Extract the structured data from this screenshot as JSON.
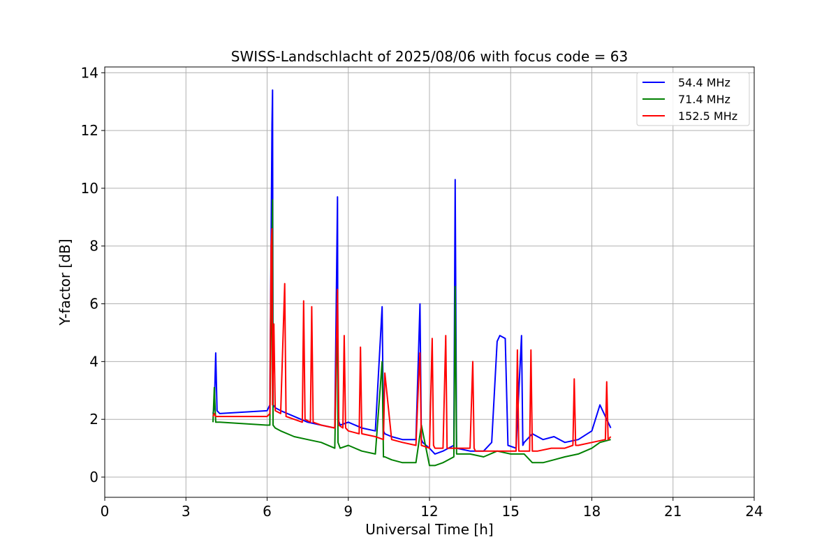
{
  "chart_data": {
    "type": "line",
    "title": "SWISS-Landschlacht of 2025/08/06 with focus code = 63",
    "xlabel": "Universal Time [h]",
    "ylabel": "Y-factor [dB]",
    "xlim": [
      0,
      24
    ],
    "ylim": [
      -0.7,
      14.2
    ],
    "xticks": [
      0,
      3,
      6,
      9,
      12,
      15,
      18,
      21,
      24
    ],
    "yticks": [
      0,
      2,
      4,
      6,
      8,
      10,
      12,
      14
    ],
    "grid": true,
    "legend_position": "top-right",
    "series": [
      {
        "name": "54.4 MHz",
        "color": "#0000ff",
        "x": [
          4.0,
          4.05,
          4.1,
          4.15,
          4.25,
          6.0,
          6.1,
          6.18,
          6.2,
          6.22,
          6.3,
          6.5,
          7.0,
          7.5,
          8.0,
          8.5,
          8.6,
          8.62,
          8.7,
          9.0,
          9.5,
          10.0,
          10.25,
          10.3,
          10.35,
          10.6,
          11.0,
          11.5,
          11.65,
          11.7,
          11.75,
          12.0,
          12.2,
          12.5,
          12.9,
          12.95,
          13.0,
          13.5,
          14.0,
          14.3,
          14.5,
          14.6,
          14.8,
          14.9,
          15.2,
          15.4,
          15.45,
          15.5,
          15.8,
          16.2,
          16.6,
          17.0,
          17.5,
          18.0,
          18.3,
          18.7
        ],
        "y": [
          2.2,
          2.4,
          4.3,
          2.3,
          2.2,
          2.3,
          2.5,
          12.2,
          13.4,
          2.5,
          2.4,
          2.3,
          2.1,
          1.9,
          1.8,
          1.7,
          9.7,
          2.0,
          1.8,
          1.9,
          1.7,
          1.6,
          5.9,
          1.6,
          1.5,
          1.4,
          1.3,
          1.3,
          6.0,
          1.3,
          1.2,
          1.0,
          0.8,
          0.9,
          1.1,
          10.3,
          1.0,
          0.9,
          0.9,
          1.2,
          4.7,
          4.9,
          4.8,
          1.1,
          1.0,
          4.9,
          1.1,
          1.2,
          1.5,
          1.3,
          1.4,
          1.2,
          1.3,
          1.6,
          2.5,
          1.7
        ]
      },
      {
        "name": "71.4 MHz",
        "color": "#008000",
        "x": [
          4.0,
          4.05,
          4.1,
          4.25,
          6.0,
          6.1,
          6.18,
          6.2,
          6.22,
          6.3,
          6.5,
          7.0,
          7.5,
          8.0,
          8.5,
          8.6,
          8.62,
          8.7,
          9.0,
          9.5,
          10.0,
          10.25,
          10.3,
          10.35,
          10.6,
          11.0,
          11.5,
          11.7,
          12.0,
          12.2,
          12.5,
          12.9,
          12.95,
          13.0,
          13.5,
          14.0,
          14.5,
          15.0,
          15.5,
          15.8,
          16.2,
          16.6,
          17.0,
          17.5,
          18.0,
          18.3,
          18.7
        ],
        "y": [
          1.9,
          3.1,
          1.9,
          1.9,
          1.8,
          1.8,
          8.0,
          9.6,
          1.8,
          1.7,
          1.6,
          1.4,
          1.3,
          1.2,
          1.0,
          6.4,
          1.2,
          1.0,
          1.1,
          0.9,
          0.8,
          4.0,
          0.7,
          0.7,
          0.6,
          0.5,
          0.5,
          1.8,
          0.4,
          0.4,
          0.5,
          0.7,
          6.6,
          0.8,
          0.8,
          0.7,
          0.9,
          0.8,
          0.8,
          0.5,
          0.5,
          0.6,
          0.7,
          0.8,
          1.0,
          1.2,
          1.3
        ]
      },
      {
        "name": "152.5 MHz",
        "color": "#ff0000",
        "x": [
          4.0,
          4.05,
          4.1,
          4.25,
          6.0,
          6.1,
          6.15,
          6.18,
          6.2,
          6.25,
          6.3,
          6.5,
          6.65,
          6.7,
          7.0,
          7.3,
          7.35,
          7.4,
          7.6,
          7.65,
          7.7,
          8.0,
          8.5,
          8.6,
          8.65,
          8.8,
          8.85,
          8.9,
          9.0,
          9.4,
          9.45,
          9.5,
          10.0,
          10.3,
          10.35,
          10.6,
          11.0,
          11.5,
          11.6,
          11.65,
          11.7,
          12.0,
          12.1,
          12.15,
          12.2,
          12.5,
          12.6,
          12.65,
          12.7,
          13.0,
          13.5,
          13.6,
          13.65,
          13.7,
          14.0,
          14.5,
          15.0,
          15.2,
          15.25,
          15.3,
          15.7,
          15.75,
          15.8,
          16.0,
          16.5,
          17.0,
          17.3,
          17.35,
          17.4,
          17.5,
          18.0,
          18.5,
          18.55,
          18.6,
          18.7
        ],
        "y": [
          2.1,
          2.2,
          2.1,
          2.1,
          2.1,
          2.2,
          8.0,
          8.6,
          2.5,
          5.3,
          2.3,
          2.2,
          6.7,
          2.1,
          2.0,
          1.9,
          6.1,
          2.0,
          1.9,
          5.9,
          1.9,
          1.8,
          1.7,
          6.5,
          1.8,
          1.7,
          4.9,
          1.7,
          1.6,
          1.5,
          4.5,
          1.5,
          1.4,
          1.3,
          3.6,
          1.3,
          1.2,
          1.1,
          3.4,
          4.3,
          1.1,
          1.0,
          4.8,
          1.1,
          1.0,
          1.0,
          4.9,
          1.0,
          1.0,
          1.0,
          1.0,
          4.0,
          1.0,
          0.9,
          0.9,
          0.9,
          0.9,
          0.9,
          4.4,
          0.9,
          0.9,
          4.4,
          0.9,
          0.9,
          1.0,
          1.0,
          1.1,
          3.4,
          1.1,
          1.1,
          1.2,
          1.3,
          3.3,
          1.3,
          1.4
        ]
      }
    ]
  }
}
